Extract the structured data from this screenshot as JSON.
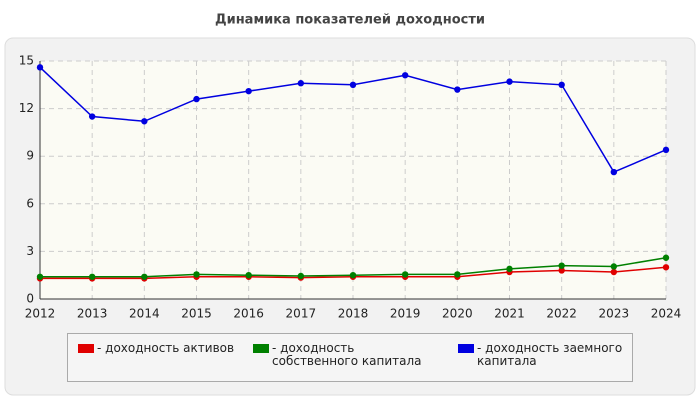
{
  "chart_data": {
    "type": "line",
    "title": "Динамика показателей доходности",
    "categories": [
      "2012",
      "2013",
      "2014",
      "2015",
      "2016",
      "2017",
      "2018",
      "2019",
      "2020",
      "2021",
      "2022",
      "2023",
      "2024"
    ],
    "series": [
      {
        "name": "- доходность активов",
        "color": "#e00000",
        "values": [
          1.3,
          1.3,
          1.3,
          1.4,
          1.4,
          1.35,
          1.4,
          1.4,
          1.4,
          1.7,
          1.8,
          1.7,
          2.0
        ]
      },
      {
        "name": "- доходность собственного капитала",
        "color": "#008000",
        "values": [
          1.4,
          1.4,
          1.4,
          1.55,
          1.5,
          1.45,
          1.5,
          1.55,
          1.55,
          1.9,
          2.1,
          2.05,
          2.6
        ]
      },
      {
        "name": "- доходность заемного капитала",
        "color": "#0000e0",
        "values": [
          14.6,
          11.5,
          11.2,
          12.6,
          13.1,
          13.6,
          13.5,
          14.1,
          13.2,
          13.7,
          13.5,
          8.0,
          9.4
        ]
      }
    ],
    "ylim": [
      0,
      15
    ],
    "yticks": [
      0,
      3,
      6,
      9,
      12,
      15
    ],
    "grid": true
  }
}
